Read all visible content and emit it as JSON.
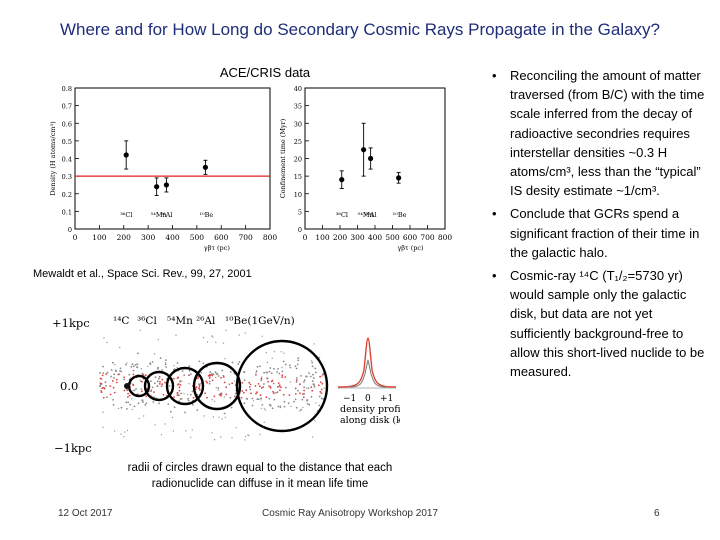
{
  "title": "Where and for How Long do Secondary Cosmic Rays Propagate in the Galaxy?",
  "dataset_label": "ACE/CRIS data",
  "citation": "Mewaldt et al., Space Sci. Rev., 99, 27, 2001",
  "bullets": [
    "Reconciling the amount of matter traversed (from B/C) with the time scale inferred from the decay of radioactive secondries requires interstellar densities ~0.3 H atoms/cm³, less than the “typical” IS desity estimate ~1/cm³.",
    "Conclude that GCRs spend a significant fraction of their time in the galactic halo.",
    "Cosmic-ray ¹⁴C (T₁/₂=5730 yr) would sample only the galactic disk, but data are not yet sufficiently background-free to allow this short-lived nuclide to be measured."
  ],
  "caption": "radii of circles drawn equal to the distance that each radionuclide can diffuse in it mean life time",
  "footer": {
    "date": "12 Oct 2017",
    "workshop": "Cosmic Ray Anisotropy Workshop 2017",
    "page": "6"
  },
  "chart_data": [
    {
      "type": "scatter",
      "title": "",
      "ylabel": "Density (H atoms/cm³)",
      "xlabel": "γβτ (pc)",
      "xlim": [
        0,
        800
      ],
      "ylim": [
        0,
        0.8
      ],
      "xticks": [
        "0",
        "100",
        "200",
        "300",
        "400",
        "500",
        "600",
        "700",
        "800"
      ],
      "yticks": [
        "0",
        "0.1",
        "0.2",
        "0.3",
        "0.4",
        "0.5",
        "0.6",
        "0.7",
        "0.8"
      ],
      "reference_line": 0.3,
      "points": [
        {
          "label": "³⁶Cl",
          "x": 210,
          "y": 0.42,
          "err": 0.08
        },
        {
          "label": "⁵⁴Mn",
          "x": 335,
          "y": 0.24,
          "err": 0.05
        },
        {
          "label": "²⁶Al",
          "x": 375,
          "y": 0.25,
          "err": 0.04
        },
        {
          "label": "¹⁰Be",
          "x": 535,
          "y": 0.35,
          "err": 0.04
        }
      ]
    },
    {
      "type": "scatter",
      "title": "",
      "ylabel": "Confinement time (Myr)",
      "xlabel": "γβτ (pc)",
      "xlim": [
        0,
        800
      ],
      "ylim": [
        0,
        40
      ],
      "xticks": [
        "0",
        "100",
        "200",
        "300",
        "400",
        "500",
        "600",
        "700",
        "800"
      ],
      "yticks": [
        "0",
        "5",
        "10",
        "15",
        "20",
        "25",
        "30",
        "35",
        "40"
      ],
      "points": [
        {
          "label": "³⁶Cl",
          "x": 210,
          "y": 14.0,
          "err": 2.5
        },
        {
          "label": "⁵⁴Mn",
          "x": 335,
          "y": 22.5,
          "err": 7.5
        },
        {
          "label": "²⁶Al",
          "x": 375,
          "y": 20.0,
          "err": 3.0
        },
        {
          "label": "¹⁰Be",
          "x": 535,
          "y": 14.5,
          "err": 1.5
        }
      ]
    }
  ],
  "diffusion_sketch": {
    "ylabels": [
      "+1kpc",
      "0.0",
      "−1kpc"
    ],
    "nuclides": [
      "¹⁴C",
      "³⁶Cl",
      "⁵⁴Mn",
      "²⁶Al",
      "¹⁰Be(1GeV/n)"
    ],
    "profile_ticks": [
      "−1",
      "0",
      "+1"
    ],
    "profile_label": "density profile along disk (kpc)"
  }
}
